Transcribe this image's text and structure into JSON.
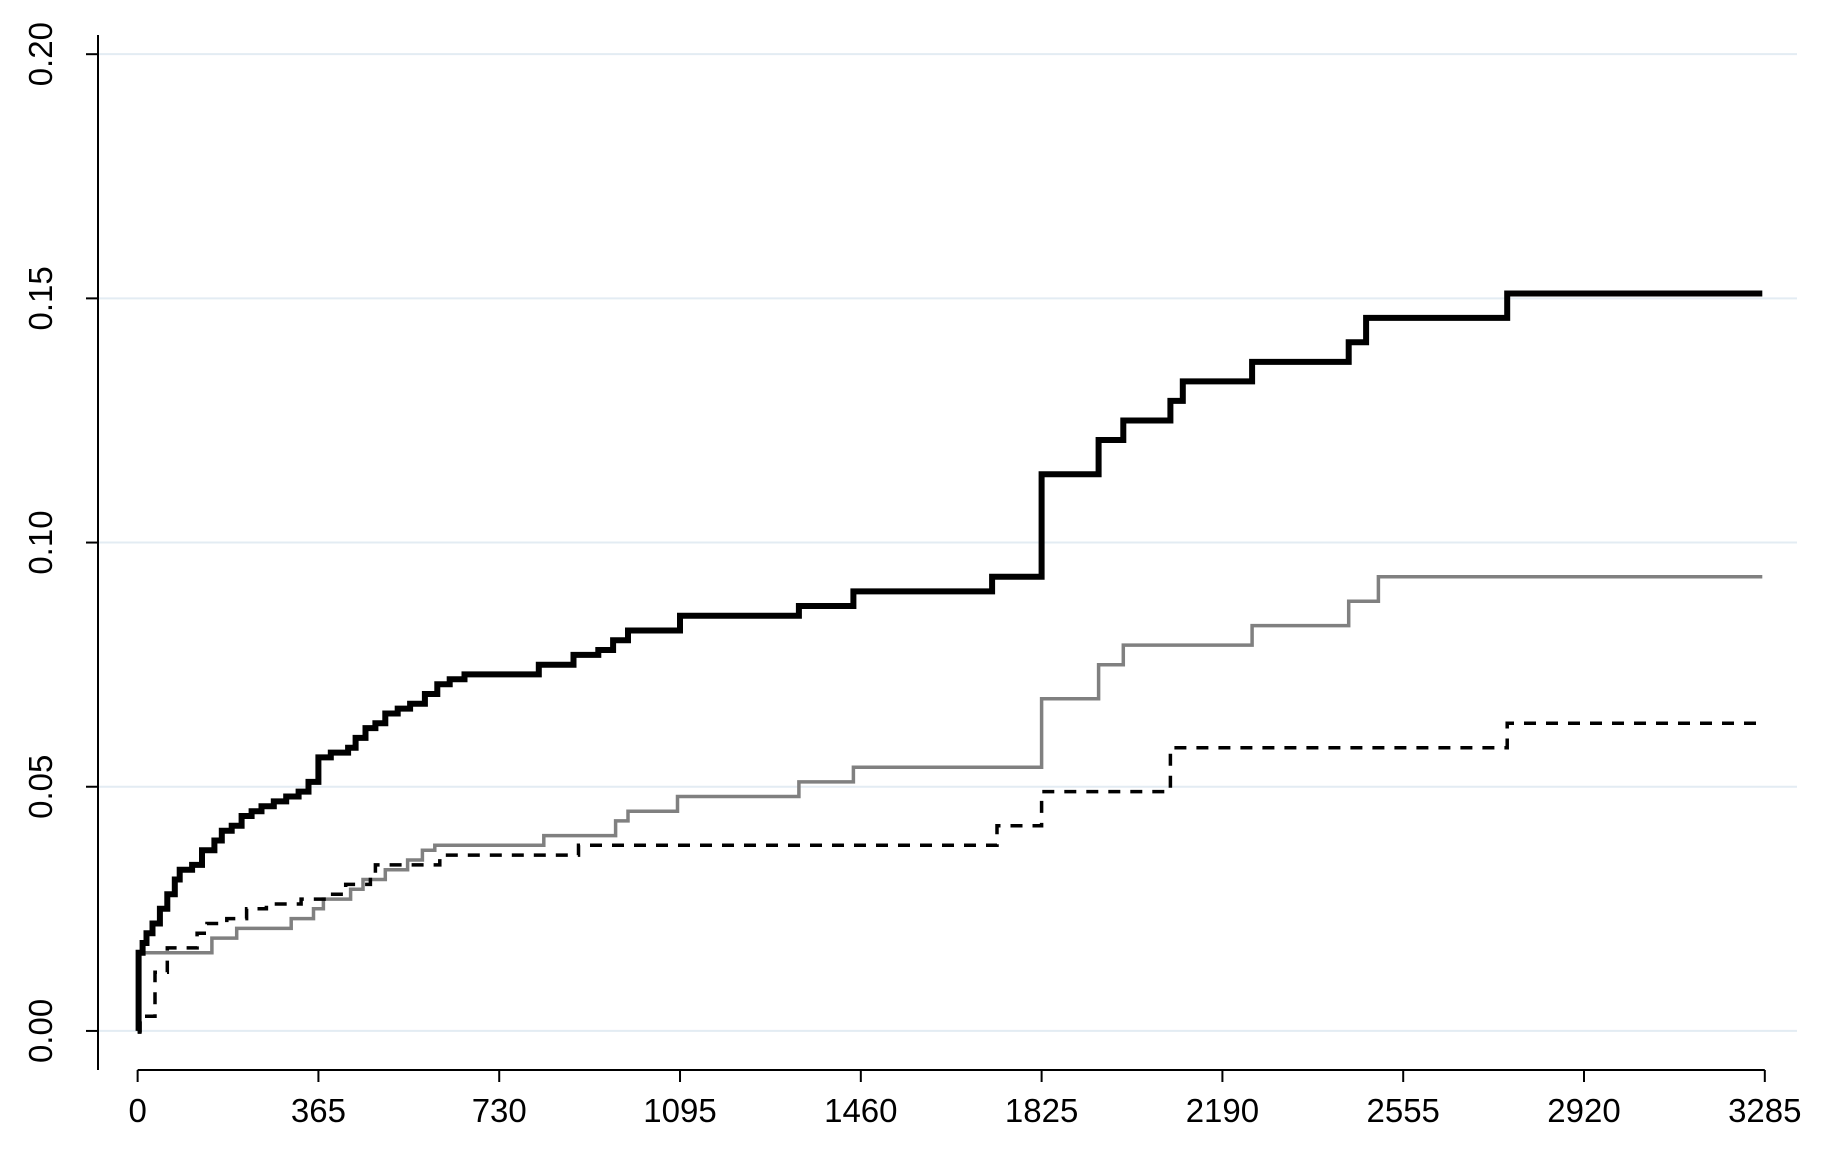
{
  "chart_data": {
    "type": "line",
    "step": true,
    "title": "",
    "xlabel": "",
    "ylabel": "",
    "xlim": [
      -80,
      3350
    ],
    "ylim": [
      -0.008,
      0.207
    ],
    "x_ticks": [
      0,
      365,
      730,
      1095,
      1460,
      1825,
      2190,
      2555,
      2920,
      3285
    ],
    "x_tick_labels": [
      "0",
      "365",
      "730",
      "1095",
      "1460",
      "1825",
      "2190",
      "2555",
      "2920",
      "3285"
    ],
    "y_ticks": [
      0.0,
      0.05,
      0.1,
      0.15,
      0.2
    ],
    "y_tick_labels": [
      "0.00",
      "0.05",
      "0.10",
      "0.15",
      "0.20"
    ],
    "grid": "horizontal",
    "gridline_color": "#e3ecf3",
    "legend": "none",
    "series": [
      {
        "color": "#000000",
        "style": "solid-thick",
        "points": [
          [
            0,
            0.0
          ],
          [
            2,
            0.016
          ],
          [
            10,
            0.018
          ],
          [
            18,
            0.02
          ],
          [
            30,
            0.022
          ],
          [
            45,
            0.025
          ],
          [
            60,
            0.028
          ],
          [
            75,
            0.031
          ],
          [
            85,
            0.033
          ],
          [
            110,
            0.034
          ],
          [
            130,
            0.037
          ],
          [
            155,
            0.039
          ],
          [
            170,
            0.041
          ],
          [
            190,
            0.042
          ],
          [
            210,
            0.044
          ],
          [
            230,
            0.045
          ],
          [
            250,
            0.046
          ],
          [
            275,
            0.047
          ],
          [
            300,
            0.048
          ],
          [
            325,
            0.049
          ],
          [
            345,
            0.051
          ],
          [
            365,
            0.056
          ],
          [
            390,
            0.057
          ],
          [
            425,
            0.058
          ],
          [
            440,
            0.06
          ],
          [
            460,
            0.062
          ],
          [
            480,
            0.063
          ],
          [
            500,
            0.065
          ],
          [
            525,
            0.066
          ],
          [
            550,
            0.067
          ],
          [
            580,
            0.069
          ],
          [
            605,
            0.071
          ],
          [
            630,
            0.072
          ],
          [
            660,
            0.073
          ],
          [
            700,
            0.073
          ],
          [
            810,
            0.075
          ],
          [
            880,
            0.077
          ],
          [
            930,
            0.078
          ],
          [
            960,
            0.08
          ],
          [
            990,
            0.082
          ],
          [
            1095,
            0.085
          ],
          [
            1335,
            0.087
          ],
          [
            1445,
            0.09
          ],
          [
            1725,
            0.093
          ],
          [
            1825,
            0.114
          ],
          [
            1940,
            0.121
          ],
          [
            1990,
            0.125
          ],
          [
            2085,
            0.129
          ],
          [
            2110,
            0.133
          ],
          [
            2250,
            0.137
          ],
          [
            2445,
            0.141
          ],
          [
            2480,
            0.146
          ],
          [
            2765,
            0.151
          ],
          [
            3280,
            0.151
          ]
        ]
      },
      {
        "color": "#808080",
        "style": "solid-medium",
        "points": [
          [
            0,
            0.016
          ],
          [
            150,
            0.019
          ],
          [
            200,
            0.021
          ],
          [
            310,
            0.023
          ],
          [
            355,
            0.025
          ],
          [
            375,
            0.027
          ],
          [
            430,
            0.029
          ],
          [
            455,
            0.031
          ],
          [
            500,
            0.033
          ],
          [
            545,
            0.035
          ],
          [
            575,
            0.037
          ],
          [
            600,
            0.038
          ],
          [
            820,
            0.04
          ],
          [
            965,
            0.043
          ],
          [
            990,
            0.045
          ],
          [
            1090,
            0.048
          ],
          [
            1335,
            0.051
          ],
          [
            1445,
            0.054
          ],
          [
            1825,
            0.068
          ],
          [
            1940,
            0.075
          ],
          [
            1990,
            0.079
          ],
          [
            2250,
            0.083
          ],
          [
            2445,
            0.088
          ],
          [
            2505,
            0.093
          ],
          [
            3280,
            0.093
          ]
        ]
      },
      {
        "color": "#000000",
        "style": "dashed",
        "points": [
          [
            0,
            0.0
          ],
          [
            5,
            0.003
          ],
          [
            35,
            0.012
          ],
          [
            60,
            0.017
          ],
          [
            120,
            0.02
          ],
          [
            140,
            0.022
          ],
          [
            180,
            0.023
          ],
          [
            220,
            0.025
          ],
          [
            260,
            0.026
          ],
          [
            330,
            0.027
          ],
          [
            380,
            0.028
          ],
          [
            420,
            0.03
          ],
          [
            470,
            0.032
          ],
          [
            480,
            0.034
          ],
          [
            610,
            0.036
          ],
          [
            890,
            0.038
          ],
          [
            1290,
            0.038
          ],
          [
            1735,
            0.042
          ],
          [
            1825,
            0.049
          ],
          [
            2085,
            0.058
          ],
          [
            2765,
            0.063
          ],
          [
            3280,
            0.063
          ]
        ]
      }
    ]
  }
}
